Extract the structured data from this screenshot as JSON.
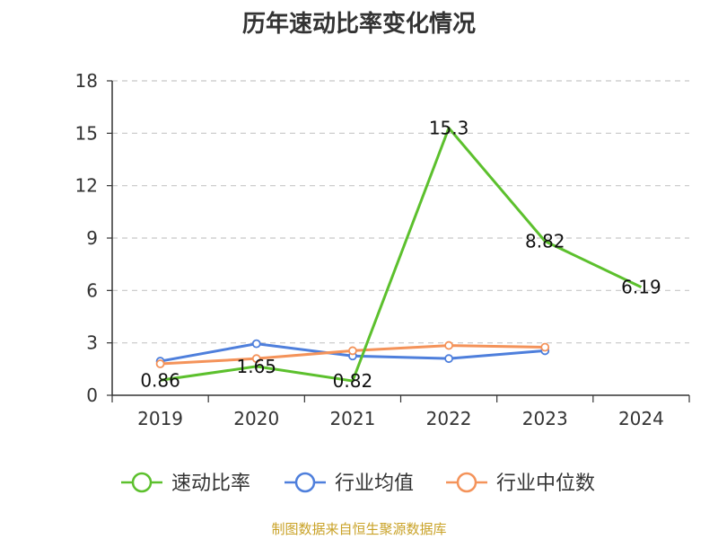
{
  "chart_data": {
    "type": "line",
    "title": "历年速动比率变化情况",
    "categories": [
      "2019",
      "2020",
      "2021",
      "2022",
      "2023",
      "2024"
    ],
    "y_ticks": [
      "0",
      "3",
      "6",
      "9",
      "12",
      "15",
      "18"
    ],
    "ylim": [
      0,
      18
    ],
    "grid": true,
    "legend_position": "bottom",
    "series": [
      {
        "name": "速动比率",
        "color": "#5cc02d",
        "values": [
          0.86,
          1.65,
          0.82,
          15.3,
          8.82,
          6.19
        ],
        "labels": [
          "0.86",
          "1.65",
          "0.82",
          "15.3",
          "8.82",
          "6.19"
        ]
      },
      {
        "name": "行业均值",
        "color": "#4e7fdc",
        "values": [
          1.95,
          2.95,
          2.25,
          2.1,
          2.55,
          null
        ]
      },
      {
        "name": "行业中位数",
        "color": "#f4935a",
        "values": [
          1.8,
          2.1,
          2.55,
          2.85,
          2.75,
          null
        ]
      }
    ]
  },
  "footer": {
    "source": "制图数据来自恒生聚源数据库"
  }
}
